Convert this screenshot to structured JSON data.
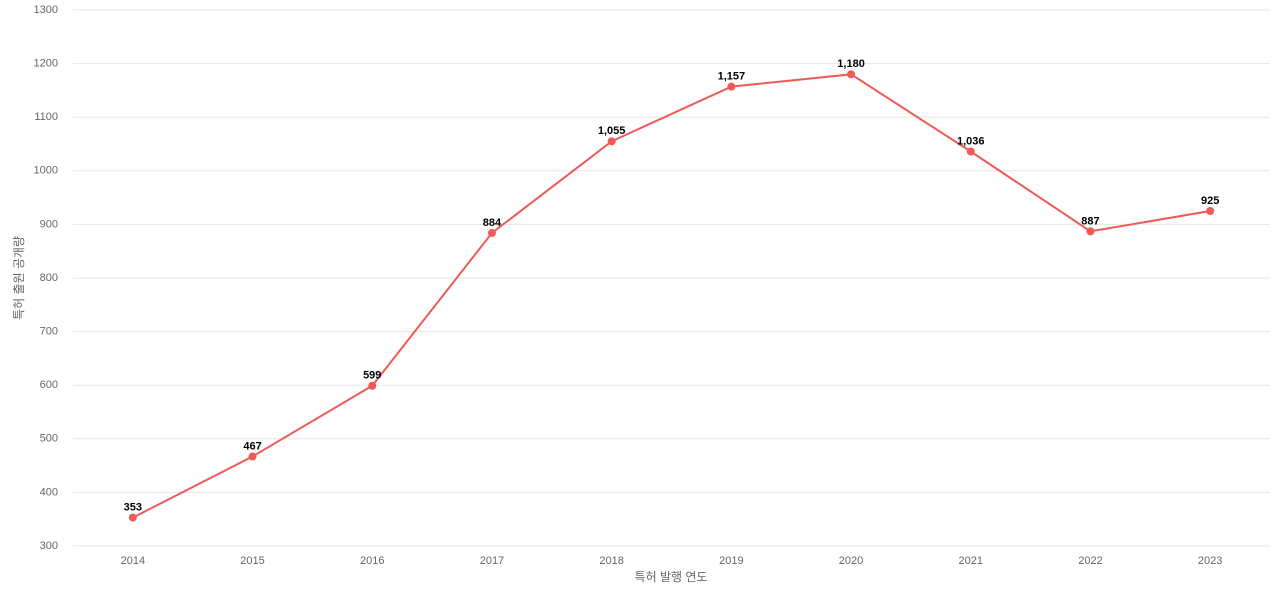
{
  "chart_data": {
    "type": "line",
    "x_label": "특허 발행 연도",
    "y_label": "특허 출원 공개량",
    "categories": [
      "2014",
      "2015",
      "2016",
      "2017",
      "2018",
      "2019",
      "2020",
      "2021",
      "2022",
      "2023"
    ],
    "series": [
      {
        "color": "#ef5a57",
        "values": [
          353,
          467,
          599,
          884,
          1055,
          1157,
          1180,
          1036,
          887,
          925
        ],
        "value_labels": [
          "353",
          "467",
          "599",
          "884",
          "1,055",
          "1,157",
          "1,180",
          "1,036",
          "887",
          "925"
        ]
      }
    ],
    "ylim": [
      300,
      1300
    ],
    "yticks": [
      300,
      400,
      500,
      600,
      700,
      800,
      900,
      1000,
      1100,
      1200,
      1300
    ],
    "grid": true
  }
}
